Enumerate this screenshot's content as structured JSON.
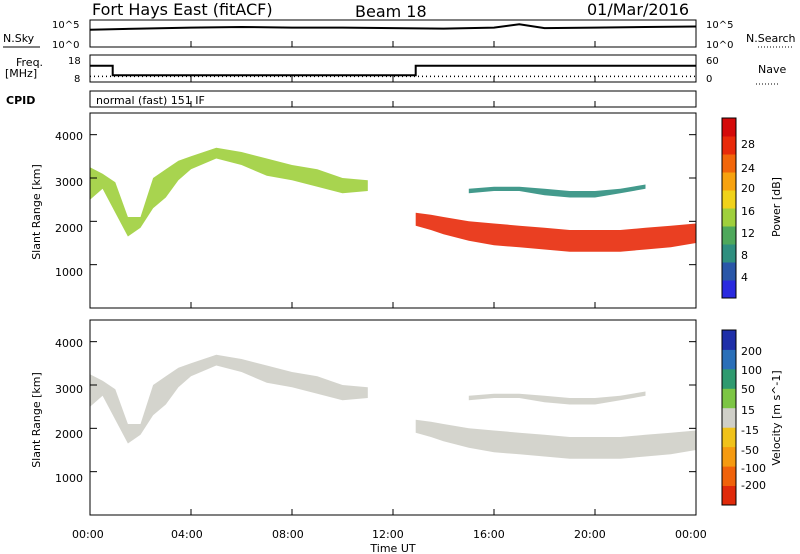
{
  "header": {
    "radar": "Fort Hays East (fitACF)",
    "beam": "Beam 18",
    "date": "01/Mar/2016"
  },
  "strips": {
    "nsky_label": "N.Sky",
    "nsky_ticks": [
      "10^5",
      "10^0"
    ],
    "nsearch_label": "N.Search",
    "nsearch_ticks": [
      "10^5",
      "10^0"
    ],
    "freq_label_line1": "Freq.",
    "freq_label_line2": "[MHz]",
    "freq_ticks": [
      "18",
      "8"
    ],
    "nave_label": "Nave",
    "nave_ticks": [
      "60",
      "0"
    ],
    "cpid_label": "CPID",
    "cpid_text": "normal (fast) 151 IF"
  },
  "axes": {
    "xlabel": "Time UT",
    "xticks": [
      "00:00",
      "04:00",
      "08:00",
      "12:00",
      "16:00",
      "20:00",
      "00:00"
    ],
    "ylabel": "Slant Range [km]",
    "yticks": [
      "1000",
      "2000",
      "3000",
      "4000"
    ]
  },
  "colorbars": {
    "power": {
      "label": "Power [dB]",
      "ticks": [
        "28",
        "24",
        "20",
        "16",
        "12",
        "8",
        "4"
      ],
      "colors": [
        "#2a2adf",
        "#2a57a8",
        "#2f8f7f",
        "#4ea85b",
        "#9fcf3c",
        "#f0d21a",
        "#f7a20f",
        "#f2660a",
        "#e82a0a",
        "#d40a0a"
      ]
    },
    "velocity": {
      "label": "Velocity [m s^-1]",
      "ticks": [
        "200",
        "100",
        "50",
        "15",
        "-15",
        "-50",
        "-100",
        "-200"
      ],
      "colors": [
        "#1f2fa8",
        "#2a6fb8",
        "#2f9a6f",
        "#7cc544",
        "#cfcfc8",
        "#f0c21a",
        "#f59a10",
        "#f0620a",
        "#e02a0a"
      ]
    }
  },
  "chart_data": [
    {
      "type": "line",
      "title": "N.Sky / N.Search",
      "x_range_hours": [
        0,
        24
      ],
      "series": [
        {
          "name": "N.Sky",
          "x": [
            0,
            2,
            4,
            6,
            8,
            10,
            12,
            14,
            16,
            17,
            18,
            20,
            22,
            24
          ],
          "values": [
            3.2,
            3.4,
            3.6,
            3.7,
            3.6,
            3.6,
            3.5,
            3.4,
            3.6,
            4.2,
            3.5,
            3.6,
            3.7,
            3.8
          ]
        }
      ],
      "yscale": "log",
      "ylim": [
        "10^0",
        "10^5"
      ]
    },
    {
      "type": "line",
      "title": "Freq. [MHz] / Nave",
      "x_range_hours": [
        0,
        24
      ],
      "series": [
        {
          "name": "Freq.",
          "x": [
            0,
            0.9,
            0.9,
            12.9,
            12.9,
            24
          ],
          "values": [
            14,
            14,
            10.5,
            10.5,
            14,
            14
          ]
        },
        {
          "name": "Nave",
          "x": [
            0,
            24
          ],
          "values": [
            8,
            8
          ]
        }
      ],
      "ylim": [
        8,
        18
      ],
      "y2lim": [
        0,
        60
      ]
    },
    {
      "type": "heatmap",
      "title": "Power [dB]",
      "xlabel": "Time UT",
      "ylabel": "Slant Range [km]",
      "x_range_hours": [
        0,
        24
      ],
      "ylim": [
        0,
        4500
      ],
      "colorbar_range": [
        4,
        28
      ],
      "bands": [
        {
          "x": [
            0.0,
            0.5,
            1.0,
            1.5,
            2.0,
            2.5,
            3.0,
            3.5,
            4.0,
            5.0,
            6.0,
            7.0,
            8.0,
            9.0,
            10.0,
            11.0
          ],
          "upper": [
            3250,
            3100,
            2900,
            2100,
            2100,
            3000,
            3200,
            3400,
            3500,
            3700,
            3600,
            3450,
            3300,
            3200,
            3000,
            2950
          ],
          "lower": [
            2500,
            2750,
            2200,
            1650,
            1850,
            2300,
            2550,
            2950,
            3200,
            3450,
            3300,
            3050,
            2950,
            2800,
            2650,
            2700
          ],
          "power_db": 14
        },
        {
          "x": [
            12.9,
            13.5,
            14.0,
            15.0,
            16.0,
            17.0,
            18.0,
            19.0,
            20.0,
            21.0,
            22.0,
            23.0,
            24.0
          ],
          "upper": [
            2200,
            2150,
            2100,
            2000,
            1950,
            1900,
            1850,
            1800,
            1800,
            1800,
            1850,
            1900,
            1950
          ],
          "lower": [
            1900,
            1800,
            1700,
            1550,
            1450,
            1400,
            1350,
            1300,
            1300,
            1300,
            1350,
            1400,
            1500
          ],
          "power_db": 24
        },
        {
          "x": [
            15.0,
            16.0,
            17.0,
            18.0,
            19.0,
            20.0,
            21.0,
            22.0
          ],
          "upper": [
            2750,
            2800,
            2800,
            2750,
            2700,
            2700,
            2750,
            2850
          ],
          "lower": [
            2650,
            2700,
            2700,
            2600,
            2550,
            2550,
            2650,
            2750
          ],
          "power_db": 10
        }
      ]
    },
    {
      "type": "heatmap",
      "title": "Velocity [m s^-1]",
      "xlabel": "Time UT",
      "ylabel": "Slant Range [km]",
      "x_range_hours": [
        0,
        24
      ],
      "ylim": [
        0,
        4500
      ],
      "colorbar_range": [
        -200,
        200
      ],
      "bands": [
        {
          "x": [
            0.0,
            0.5,
            1.0,
            1.5,
            2.0,
            2.5,
            3.0,
            3.5,
            4.0,
            5.0,
            6.0,
            7.0,
            8.0,
            9.0,
            10.0,
            11.0
          ],
          "upper": [
            3250,
            3100,
            2900,
            2100,
            2100,
            3000,
            3200,
            3400,
            3500,
            3700,
            3600,
            3450,
            3300,
            3200,
            3000,
            2950
          ],
          "lower": [
            2500,
            2750,
            2200,
            1650,
            1850,
            2300,
            2550,
            2950,
            3200,
            3450,
            3300,
            3050,
            2950,
            2800,
            2650,
            2700
          ],
          "velocity": 0
        },
        {
          "x": [
            12.9,
            13.5,
            14.0,
            15.0,
            16.0,
            17.0,
            18.0,
            19.0,
            20.0,
            21.0,
            22.0,
            23.0,
            24.0
          ],
          "upper": [
            2200,
            2150,
            2100,
            2000,
            1950,
            1900,
            1850,
            1800,
            1800,
            1800,
            1850,
            1900,
            1950
          ],
          "lower": [
            1900,
            1800,
            1700,
            1550,
            1450,
            1400,
            1350,
            1300,
            1300,
            1300,
            1350,
            1400,
            1500
          ],
          "velocity": 0
        },
        {
          "x": [
            15.0,
            16.0,
            17.0,
            18.0,
            19.0,
            20.0,
            21.0,
            22.0
          ],
          "upper": [
            2750,
            2800,
            2800,
            2750,
            2700,
            2700,
            2750,
            2850
          ],
          "lower": [
            2650,
            2700,
            2700,
            2600,
            2550,
            2550,
            2650,
            2750
          ],
          "velocity": 0
        }
      ]
    }
  ]
}
